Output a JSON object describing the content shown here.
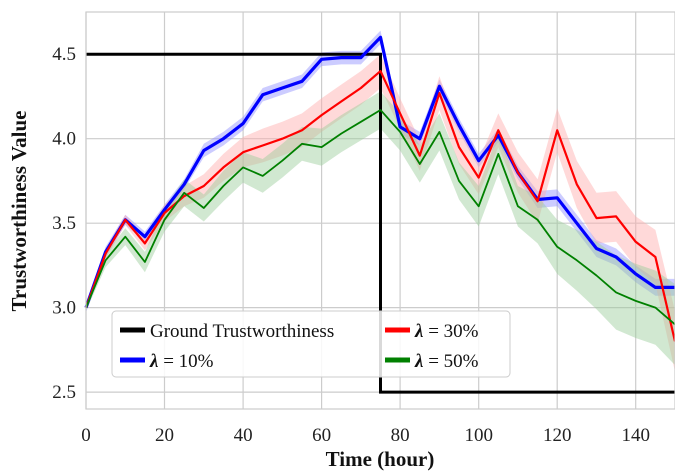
{
  "chart_data": {
    "type": "line",
    "xlabel": "Time (hour)",
    "ylabel": "Trustworthiness Value",
    "xlim": [
      0,
      150
    ],
    "ylim": [
      2.4,
      4.75
    ],
    "xticks": [
      0,
      20,
      40,
      60,
      80,
      100,
      120,
      140
    ],
    "yticks": [
      2.5,
      3.0,
      3.5,
      4.0,
      4.5
    ],
    "ytick_labels": [
      "2.5",
      "3.0",
      "3.5",
      "4.0",
      "4.5"
    ],
    "grid": true,
    "legend_placement": "lower-left",
    "x": [
      0,
      5,
      10,
      15,
      20,
      25,
      30,
      35,
      40,
      45,
      50,
      55,
      60,
      65,
      70,
      75,
      80,
      85,
      90,
      95,
      100,
      105,
      110,
      115,
      120,
      125,
      130,
      135,
      140,
      145,
      150
    ],
    "ground_truth": {
      "name": "Ground Trustworthiness",
      "color": "#000000",
      "points": [
        [
          0,
          4.5
        ],
        [
          75,
          4.5
        ],
        [
          75,
          2.5
        ],
        [
          150,
          2.5
        ]
      ]
    },
    "series": [
      {
        "name": "λ = 10%",
        "legend_symbol": "λ",
        "legend_value": " = 10%",
        "color": "#0000ff",
        "band_color": "#8f8fff",
        "values": [
          3.0,
          3.33,
          3.52,
          3.42,
          3.58,
          3.73,
          3.93,
          4.0,
          4.09,
          4.26,
          4.3,
          4.34,
          4.47,
          4.48,
          4.48,
          4.6,
          4.07,
          4.0,
          4.31,
          4.08,
          3.87,
          4.02,
          3.8,
          3.64,
          3.65,
          3.5,
          3.35,
          3.3,
          3.2,
          3.12,
          3.12
        ],
        "band": [
          0.03,
          0.03,
          0.03,
          0.03,
          0.03,
          0.03,
          0.04,
          0.04,
          0.04,
          0.04,
          0.04,
          0.04,
          0.04,
          0.04,
          0.04,
          0.04,
          0.04,
          0.04,
          0.04,
          0.04,
          0.04,
          0.04,
          0.04,
          0.05,
          0.05,
          0.05,
          0.05,
          0.05,
          0.05,
          0.05,
          0.05
        ]
      },
      {
        "name": "λ = 30%",
        "legend_symbol": "λ",
        "legend_value": " = 30%",
        "color": "#ff0000",
        "band_color": "#ffaaaa",
        "values": [
          3.0,
          3.32,
          3.52,
          3.38,
          3.56,
          3.66,
          3.72,
          3.83,
          3.92,
          3.96,
          4.0,
          4.05,
          4.14,
          4.22,
          4.3,
          4.4,
          4.15,
          3.9,
          4.27,
          3.95,
          3.77,
          4.05,
          3.8,
          3.63,
          4.05,
          3.73,
          3.53,
          3.54,
          3.39,
          3.3,
          2.8
        ],
        "band": [
          0.02,
          0.03,
          0.03,
          0.04,
          0.05,
          0.06,
          0.07,
          0.08,
          0.09,
          0.1,
          0.1,
          0.1,
          0.1,
          0.1,
          0.1,
          0.1,
          0.09,
          0.09,
          0.1,
          0.1,
          0.1,
          0.1,
          0.12,
          0.13,
          0.13,
          0.14,
          0.15,
          0.15,
          0.15,
          0.16,
          0.18
        ]
      },
      {
        "name": "λ = 50%",
        "legend_symbol": "λ",
        "legend_value": " = 50%",
        "color": "#008000",
        "band_color": "#99cc99",
        "values": [
          3.0,
          3.28,
          3.42,
          3.27,
          3.52,
          3.68,
          3.59,
          3.72,
          3.83,
          3.78,
          3.87,
          3.97,
          3.95,
          4.03,
          4.1,
          4.17,
          4.04,
          3.85,
          4.04,
          3.75,
          3.6,
          3.91,
          3.6,
          3.52,
          3.36,
          3.28,
          3.19,
          3.09,
          3.04,
          3.0,
          2.9
        ],
        "band": [
          0.02,
          0.04,
          0.05,
          0.06,
          0.07,
          0.08,
          0.08,
          0.09,
          0.09,
          0.1,
          0.1,
          0.1,
          0.11,
          0.11,
          0.11,
          0.11,
          0.11,
          0.11,
          0.11,
          0.11,
          0.12,
          0.12,
          0.12,
          0.14,
          0.16,
          0.18,
          0.2,
          0.22,
          0.22,
          0.22,
          0.24
        ]
      }
    ]
  },
  "legend": {
    "ground": "Ground Trustworthiness",
    "lambda": "λ",
    "s10": " = 10%",
    "s30": " = 30%",
    "s50": " = 50%"
  }
}
